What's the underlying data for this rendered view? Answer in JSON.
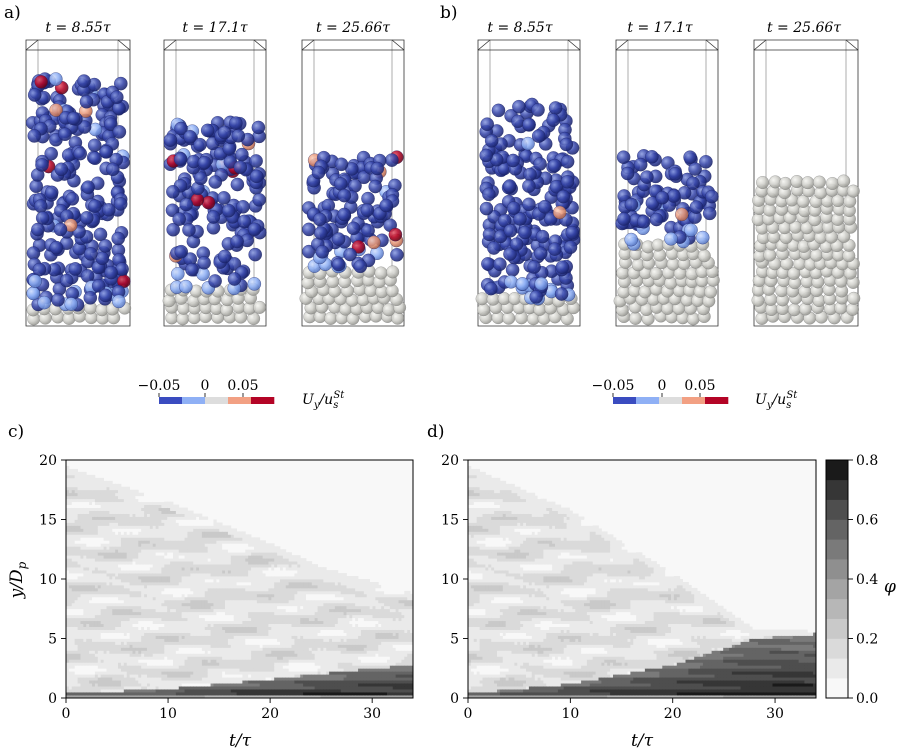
{
  "panels": {
    "a": {
      "label": "a)",
      "snapshots": [
        {
          "time_label": "t = 8.55τ",
          "settled_fraction": 0.05
        },
        {
          "time_label": "t = 17.1τ",
          "settled_fraction": 0.12
        },
        {
          "time_label": "t = 25.66τ",
          "settled_fraction": 0.2
        }
      ]
    },
    "b": {
      "label": "b)",
      "snapshots": [
        {
          "time_label": "t = 8.55τ",
          "settled_fraction": 0.08
        },
        {
          "time_label": "t = 17.1τ",
          "settled_fraction": 0.28
        },
        {
          "time_label": "t = 25.66τ",
          "settled_fraction": 0.5
        }
      ]
    }
  },
  "colorbar_velocity": {
    "ticks": [
      "−0.05",
      "0",
      "0.05"
    ],
    "label": "U_y/u_s^St",
    "colors": [
      "#3a4cc0",
      "#8fb0f5",
      "#dddddd",
      "#f2a083",
      "#b40426"
    ]
  },
  "colorbar_phi": {
    "ticks": [
      "0.0",
      "0.2",
      "0.4",
      "0.6",
      "0.8"
    ],
    "label": "φ",
    "levels": [
      "#f8f8f8",
      "#eaeaea",
      "#dadada",
      "#c9c9c9",
      "#b7b7b7",
      "#a4a4a4",
      "#8f8f8f",
      "#7a7a7a",
      "#646464",
      "#4e4e4e",
      "#363636",
      "#1a1a1a"
    ]
  },
  "chart_data": [
    {
      "type": "heatmap",
      "panel": "c)",
      "xlabel": "t/τ",
      "ylabel": "y/D_p",
      "xlim": [
        0,
        34
      ],
      "ylim": [
        0,
        20
      ],
      "xticks": [
        "0",
        "10",
        "20",
        "30"
      ],
      "yticks": [
        "0",
        "5",
        "10",
        "15",
        "20"
      ],
      "suspension_top": [
        [
          0,
          19.5
        ],
        [
          10,
          16.5
        ],
        [
          20,
          13.0
        ],
        [
          25,
          11.0
        ],
        [
          30,
          9.8
        ],
        [
          34,
          8.8
        ]
      ],
      "bed_top": [
        [
          0,
          0.4
        ],
        [
          10,
          0.8
        ],
        [
          20,
          1.6
        ],
        [
          30,
          2.5
        ],
        [
          34,
          2.8
        ]
      ],
      "bed_fraction_range": [
        0.5,
        0.75
      ]
    },
    {
      "type": "heatmap",
      "panel": "d)",
      "xlabel": "t/τ",
      "ylabel": "",
      "xlim": [
        0,
        34
      ],
      "ylim": [
        0,
        20
      ],
      "xticks": [
        "0",
        "10",
        "20",
        "30"
      ],
      "yticks": [
        "0",
        "5",
        "10",
        "15",
        "20"
      ],
      "suspension_top": [
        [
          0,
          19.5
        ],
        [
          10,
          15.8
        ],
        [
          20,
          10.5
        ],
        [
          25,
          7.5
        ],
        [
          28,
          5.8
        ],
        [
          34,
          5.6
        ]
      ],
      "bed_top": [
        [
          0,
          0.4
        ],
        [
          10,
          1.2
        ],
        [
          20,
          2.8
        ],
        [
          28,
          5.0
        ],
        [
          34,
          5.4
        ]
      ],
      "bed_fraction_range": [
        0.5,
        0.75
      ]
    }
  ]
}
